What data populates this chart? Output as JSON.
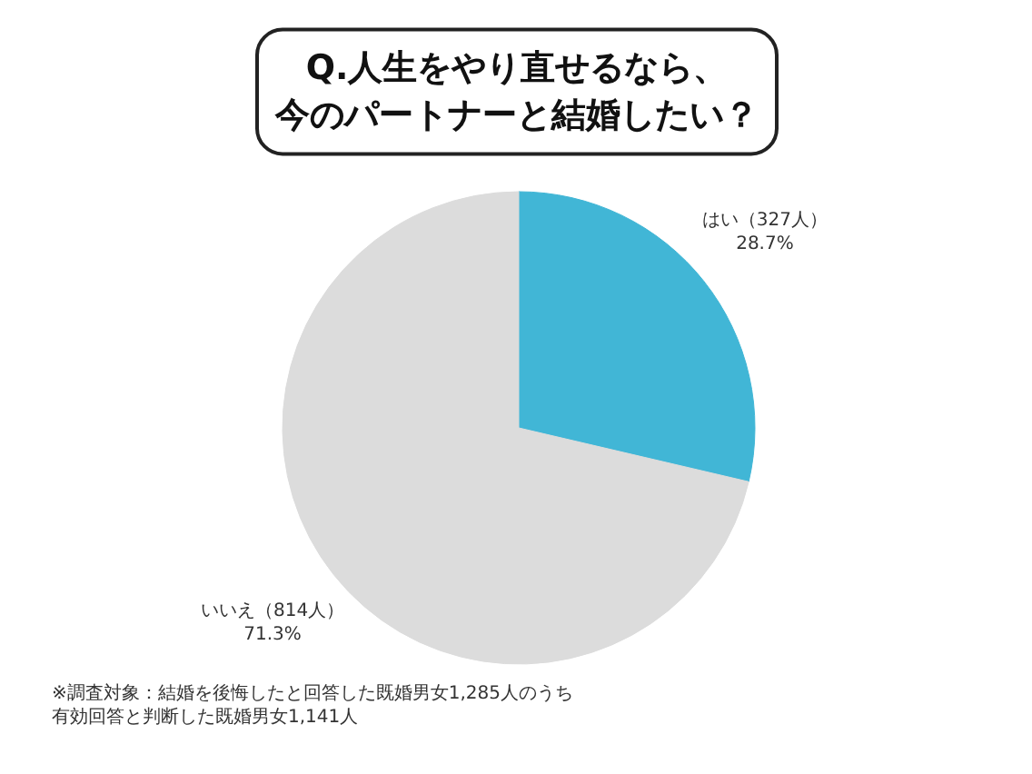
{
  "chart_data": {
    "type": "pie",
    "title": "Q.人生をやり直せるなら、今のパートナーと結婚したい？",
    "categories": [
      "はい",
      "いいえ"
    ],
    "values": [
      327,
      814
    ],
    "value_labels": [
      "（327人）\n28.7%",
      "（814人）\n71.3%"
    ],
    "colors": [
      "#41b6d6",
      "#dcdcdc"
    ],
    "annotations": [
      "※調査対象：結婚を後悔したと回答した既婚男女1,285人のうち有効回答と判断した既婚男女1,141人"
    ]
  }
}
